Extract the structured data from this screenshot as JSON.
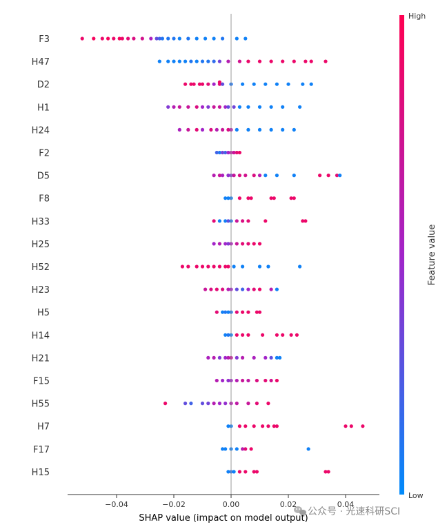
{
  "chart_data": {
    "type": "scatter",
    "subtype": "shap-beeswarm-summary",
    "xlabel": "SHAP value (impact on model output)",
    "xlim": [
      -0.058,
      0.052
    ],
    "xticks": [
      -0.04,
      -0.02,
      0.0,
      0.02,
      0.04
    ],
    "xtick_labels": [
      "−0.04",
      "−0.02",
      "0.00",
      "0.02",
      "0.04"
    ],
    "colorbar": {
      "title": "Feature value",
      "high_label": "High",
      "low_label": "Low",
      "low_color": "#008bfb",
      "mid_color": "#a224c9",
      "high_color": "#ff0051"
    },
    "zero_line": true,
    "grid": false,
    "features": [
      {
        "name": "F3",
        "points": [
          [
            -0.052,
            0.9
          ],
          [
            -0.048,
            0.95
          ],
          [
            -0.045,
            0.9
          ],
          [
            -0.043,
            0.95
          ],
          [
            -0.041,
            0.9
          ],
          [
            -0.039,
            0.95
          ],
          [
            -0.038,
            0.9
          ],
          [
            -0.036,
            0.85
          ],
          [
            -0.034,
            0.8
          ],
          [
            -0.031,
            0.75
          ],
          [
            -0.028,
            0.55
          ],
          [
            -0.026,
            0.3
          ],
          [
            -0.025,
            0.2
          ],
          [
            -0.024,
            0.1
          ],
          [
            -0.022,
            0.1
          ],
          [
            -0.02,
            0.1
          ],
          [
            -0.018,
            0.05
          ],
          [
            -0.015,
            0.1
          ],
          [
            -0.012,
            0.05
          ],
          [
            -0.009,
            0.05
          ],
          [
            -0.006,
            0.05
          ],
          [
            -0.003,
            0.1
          ],
          [
            0.002,
            0.05
          ],
          [
            0.005,
            0.05
          ]
        ]
      },
      {
        "name": "H47",
        "points": [
          [
            -0.025,
            0.05
          ],
          [
            -0.022,
            0.05
          ],
          [
            -0.02,
            0.05
          ],
          [
            -0.018,
            0.05
          ],
          [
            -0.016,
            0.05
          ],
          [
            -0.014,
            0.1
          ],
          [
            -0.012,
            0.05
          ],
          [
            -0.01,
            0.1
          ],
          [
            -0.008,
            0.1
          ],
          [
            -0.006,
            0.15
          ],
          [
            -0.004,
            0.35
          ],
          [
            -0.001,
            0.6
          ],
          [
            0.003,
            0.75
          ],
          [
            0.006,
            0.9
          ],
          [
            0.01,
            0.9
          ],
          [
            0.014,
            0.9
          ],
          [
            0.018,
            0.9
          ],
          [
            0.022,
            0.9
          ],
          [
            0.026,
            0.9
          ],
          [
            0.028,
            0.9
          ],
          [
            0.033,
            0.9
          ]
        ]
      },
      {
        "name": "D2",
        "points": [
          [
            -0.016,
            0.9
          ],
          [
            -0.014,
            0.9
          ],
          [
            -0.013,
            0.9
          ],
          [
            -0.011,
            0.9
          ],
          [
            -0.01,
            0.9
          ],
          [
            -0.008,
            0.85
          ],
          [
            -0.006,
            0.5
          ],
          [
            -0.004,
            0.85
          ],
          [
            -0.004,
            0.9
          ],
          [
            -0.003,
            0.3
          ],
          [
            0.0,
            0.1
          ],
          [
            0.004,
            0.05
          ],
          [
            0.008,
            0.05
          ],
          [
            0.012,
            0.05
          ],
          [
            0.016,
            0.05
          ],
          [
            0.02,
            0.05
          ],
          [
            0.025,
            0.05
          ],
          [
            0.028,
            0.05
          ]
        ]
      },
      {
        "name": "H1",
        "points": [
          [
            -0.022,
            0.4
          ],
          [
            -0.02,
            0.6
          ],
          [
            -0.018,
            0.7
          ],
          [
            -0.015,
            0.7
          ],
          [
            -0.012,
            0.8
          ],
          [
            -0.01,
            0.5
          ],
          [
            -0.008,
            0.4
          ],
          [
            -0.006,
            0.7
          ],
          [
            -0.004,
            0.7
          ],
          [
            -0.002,
            0.5
          ],
          [
            -0.001,
            0.3
          ],
          [
            0.001,
            0.35
          ],
          [
            0.003,
            0.05
          ],
          [
            0.006,
            0.05
          ],
          [
            0.01,
            0.05
          ],
          [
            0.014,
            0.05
          ],
          [
            0.018,
            0.05
          ],
          [
            0.024,
            0.05
          ]
        ]
      },
      {
        "name": "H24",
        "points": [
          [
            -0.018,
            0.55
          ],
          [
            -0.015,
            0.7
          ],
          [
            -0.012,
            0.85
          ],
          [
            -0.01,
            0.5
          ],
          [
            -0.007,
            0.8
          ],
          [
            -0.005,
            0.6
          ],
          [
            -0.003,
            0.7
          ],
          [
            -0.001,
            0.8
          ],
          [
            0.0,
            0.6
          ],
          [
            0.002,
            0.05
          ],
          [
            0.006,
            0.05
          ],
          [
            0.01,
            0.05
          ],
          [
            0.014,
            0.05
          ],
          [
            0.018,
            0.05
          ],
          [
            0.022,
            0.05
          ]
        ]
      },
      {
        "name": "F2",
        "points": [
          [
            -0.005,
            0.2
          ],
          [
            -0.004,
            0.1
          ],
          [
            -0.003,
            0.35
          ],
          [
            -0.002,
            0.2
          ],
          [
            -0.001,
            0.5
          ],
          [
            0.0,
            0.65
          ],
          [
            0.001,
            0.7
          ],
          [
            0.002,
            0.85
          ],
          [
            0.003,
            0.9
          ]
        ]
      },
      {
        "name": "D5",
        "points": [
          [
            -0.006,
            0.6
          ],
          [
            -0.004,
            0.7
          ],
          [
            -0.003,
            0.55
          ],
          [
            -0.001,
            0.45
          ],
          [
            0.0,
            0.4
          ],
          [
            0.001,
            0.7
          ],
          [
            0.003,
            0.8
          ],
          [
            0.005,
            0.75
          ],
          [
            0.008,
            0.8
          ],
          [
            0.01,
            0.6
          ],
          [
            0.012,
            0.05
          ],
          [
            0.016,
            0.05
          ],
          [
            0.022,
            0.05
          ],
          [
            0.031,
            0.9
          ],
          [
            0.034,
            0.9
          ],
          [
            0.037,
            0.85
          ],
          [
            0.038,
            0.05
          ]
        ]
      },
      {
        "name": "F8",
        "points": [
          [
            -0.002,
            0.05
          ],
          [
            -0.001,
            0.05
          ],
          [
            0.0,
            0.05
          ],
          [
            0.003,
            0.9
          ],
          [
            0.006,
            0.9
          ],
          [
            0.007,
            0.9
          ],
          [
            0.014,
            0.9
          ],
          [
            0.015,
            0.9
          ],
          [
            0.021,
            0.9
          ],
          [
            0.022,
            0.9
          ]
        ]
      },
      {
        "name": "H33",
        "points": [
          [
            -0.006,
            0.85
          ],
          [
            -0.004,
            0.05
          ],
          [
            -0.002,
            0.05
          ],
          [
            -0.001,
            0.3
          ],
          [
            0.0,
            0.1
          ],
          [
            0.002,
            0.7
          ],
          [
            0.004,
            0.8
          ],
          [
            0.006,
            0.85
          ],
          [
            0.012,
            0.9
          ],
          [
            0.025,
            0.9
          ],
          [
            0.026,
            0.9
          ]
        ]
      },
      {
        "name": "H25",
        "points": [
          [
            -0.006,
            0.5
          ],
          [
            -0.004,
            0.6
          ],
          [
            -0.002,
            0.5
          ],
          [
            -0.001,
            0.4
          ],
          [
            0.0,
            0.55
          ],
          [
            0.002,
            0.7
          ],
          [
            0.004,
            0.85
          ],
          [
            0.006,
            0.85
          ],
          [
            0.008,
            0.9
          ],
          [
            0.01,
            0.9
          ]
        ]
      },
      {
        "name": "H52",
        "points": [
          [
            -0.017,
            0.9
          ],
          [
            -0.015,
            0.9
          ],
          [
            -0.012,
            0.9
          ],
          [
            -0.01,
            0.9
          ],
          [
            -0.008,
            0.9
          ],
          [
            -0.006,
            0.9
          ],
          [
            -0.004,
            0.9
          ],
          [
            -0.002,
            0.9
          ],
          [
            -0.001,
            0.9
          ],
          [
            0.001,
            0.05
          ],
          [
            0.004,
            0.05
          ],
          [
            0.01,
            0.05
          ],
          [
            0.013,
            0.05
          ],
          [
            0.024,
            0.05
          ]
        ]
      },
      {
        "name": "H23",
        "points": [
          [
            -0.009,
            0.7
          ],
          [
            -0.007,
            0.8
          ],
          [
            -0.005,
            0.85
          ],
          [
            -0.003,
            0.8
          ],
          [
            -0.001,
            0.6
          ],
          [
            0.0,
            0.5
          ],
          [
            0.002,
            0.3
          ],
          [
            0.004,
            0.2
          ],
          [
            0.006,
            0.5
          ],
          [
            0.008,
            0.85
          ],
          [
            0.01,
            0.9
          ],
          [
            0.014,
            0.6
          ],
          [
            0.016,
            0.05
          ]
        ]
      },
      {
        "name": "H5",
        "points": [
          [
            -0.005,
            0.85
          ],
          [
            -0.003,
            0.05
          ],
          [
            -0.002,
            0.1
          ],
          [
            -0.001,
            0.05
          ],
          [
            0.0,
            0.1
          ],
          [
            0.002,
            0.85
          ],
          [
            0.004,
            0.9
          ],
          [
            0.006,
            0.9
          ],
          [
            0.009,
            0.9
          ],
          [
            0.01,
            0.9
          ]
        ]
      },
      {
        "name": "H14",
        "points": [
          [
            -0.002,
            0.05
          ],
          [
            -0.001,
            0.1
          ],
          [
            0.0,
            0.05
          ],
          [
            0.002,
            0.9
          ],
          [
            0.004,
            0.9
          ],
          [
            0.006,
            0.9
          ],
          [
            0.011,
            0.9
          ],
          [
            0.016,
            0.9
          ],
          [
            0.018,
            0.9
          ],
          [
            0.021,
            0.9
          ],
          [
            0.023,
            0.9
          ]
        ]
      },
      {
        "name": "H21",
        "points": [
          [
            -0.008,
            0.55
          ],
          [
            -0.006,
            0.6
          ],
          [
            -0.004,
            0.4
          ],
          [
            -0.002,
            0.5
          ],
          [
            -0.001,
            0.6
          ],
          [
            0.0,
            0.7
          ],
          [
            0.002,
            0.4
          ],
          [
            0.004,
            0.6
          ],
          [
            0.008,
            0.55
          ],
          [
            0.012,
            0.5
          ],
          [
            0.014,
            0.3
          ],
          [
            0.016,
            0.05
          ],
          [
            0.017,
            0.05
          ]
        ]
      },
      {
        "name": "F15",
        "points": [
          [
            -0.005,
            0.6
          ],
          [
            -0.003,
            0.5
          ],
          [
            -0.001,
            0.45
          ],
          [
            0.0,
            0.5
          ],
          [
            0.002,
            0.6
          ],
          [
            0.004,
            0.7
          ],
          [
            0.006,
            0.65
          ],
          [
            0.009,
            0.8
          ],
          [
            0.012,
            0.85
          ],
          [
            0.014,
            0.75
          ],
          [
            0.016,
            0.9
          ]
        ]
      },
      {
        "name": "H55",
        "points": [
          [
            -0.023,
            0.9
          ],
          [
            -0.016,
            0.3
          ],
          [
            -0.014,
            0.2
          ],
          [
            -0.01,
            0.3
          ],
          [
            -0.008,
            0.35
          ],
          [
            -0.006,
            0.6
          ],
          [
            -0.004,
            0.5
          ],
          [
            -0.002,
            0.45
          ],
          [
            0.0,
            0.6
          ],
          [
            0.002,
            0.65
          ],
          [
            0.006,
            0.7
          ],
          [
            0.009,
            0.85
          ],
          [
            0.013,
            0.9
          ]
        ]
      },
      {
        "name": "H7",
        "points": [
          [
            -0.001,
            0.05
          ],
          [
            0.0,
            0.05
          ],
          [
            0.003,
            0.9
          ],
          [
            0.005,
            0.9
          ],
          [
            0.008,
            0.9
          ],
          [
            0.011,
            0.9
          ],
          [
            0.013,
            0.9
          ],
          [
            0.015,
            0.9
          ],
          [
            0.016,
            0.9
          ],
          [
            0.04,
            0.9
          ],
          [
            0.042,
            0.9
          ],
          [
            0.046,
            0.9
          ]
        ]
      },
      {
        "name": "F17",
        "points": [
          [
            -0.003,
            0.05
          ],
          [
            -0.002,
            0.05
          ],
          [
            0.0,
            0.05
          ],
          [
            0.002,
            0.05
          ],
          [
            0.004,
            0.6
          ],
          [
            0.005,
            0.85
          ],
          [
            0.007,
            0.9
          ],
          [
            0.027,
            0.05
          ]
        ]
      },
      {
        "name": "H15",
        "points": [
          [
            -0.001,
            0.05
          ],
          [
            0.0,
            0.1
          ],
          [
            0.001,
            0.05
          ],
          [
            0.003,
            0.9
          ],
          [
            0.005,
            0.9
          ],
          [
            0.008,
            0.9
          ],
          [
            0.009,
            0.9
          ],
          [
            0.033,
            0.9
          ],
          [
            0.034,
            0.9
          ]
        ]
      }
    ]
  },
  "watermark": {
    "text": "公众号 · 光速科研SCI",
    "icon": "wechat-icon"
  }
}
